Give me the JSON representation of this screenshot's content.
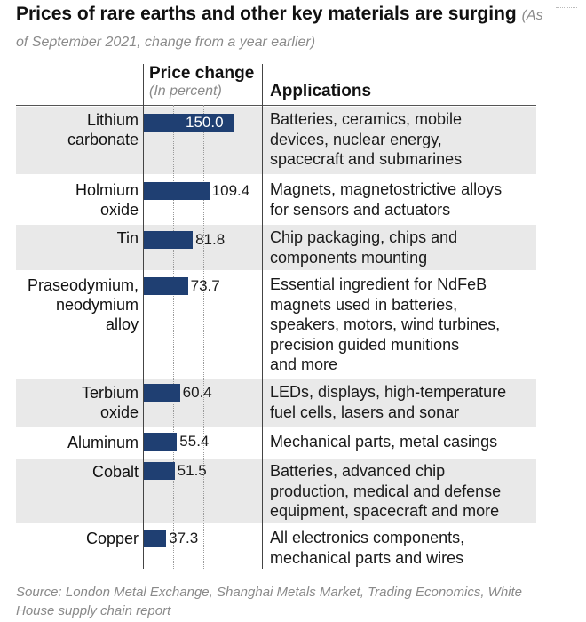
{
  "title": "Prices of rare earths and other key materials are surging",
  "subtitle": "(As of September 2021, change from a year earlier)",
  "headers": {
    "price_change": "Price change",
    "price_unit": "(In percent)",
    "applications": "Applications"
  },
  "source": "Source: London Metal Exchange, Shanghai Metals Market, Trading Economics, White House supply chain report",
  "chart_data": {
    "type": "bar",
    "orientation": "horizontal",
    "title": "Prices of rare earths and other key materials are surging",
    "subtitle": "(As of September 2021, change from a year earlier)",
    "xlabel": "Price change (In percent)",
    "ylabel": "",
    "xlim": [
      0,
      150
    ],
    "color": "#1f3f72",
    "categories": [
      "Lithium carbonate",
      "Holmium oxide",
      "Tin",
      "Praseodymium, neodymium alloy",
      "Terbium oxide",
      "Aluminum",
      "Cobalt",
      "Copper"
    ],
    "values": [
      150.0,
      109.4,
      81.8,
      73.7,
      60.4,
      55.4,
      51.5,
      37.3
    ],
    "rows": [
      {
        "material": [
          "Lithium",
          "carbonate"
        ],
        "value": 150.0,
        "value_label": "150.0",
        "label_inside": true,
        "applications": [
          "Batteries, ceramics, mobile",
          "devices, nuclear energy,",
          "spacecraft and submarines"
        ]
      },
      {
        "material": [
          "Holmium",
          "oxide"
        ],
        "value": 109.4,
        "value_label": "109.4",
        "label_inside": false,
        "applications": [
          "Magnets, magnetostrictive alloys",
          "for sensors and actuators"
        ]
      },
      {
        "material": [
          "Tin"
        ],
        "value": 81.8,
        "value_label": "81.8",
        "label_inside": false,
        "applications": [
          "Chip packaging, chips and",
          "components mounting"
        ]
      },
      {
        "material": [
          "Praseodymium,",
          "neodymium",
          "alloy"
        ],
        "value": 73.7,
        "value_label": "73.7",
        "label_inside": false,
        "applications": [
          "Essential ingredient for NdFeB",
          "magnets used in batteries,",
          "speakers, motors, wind turbines,",
          "precision guided munitions",
          "and more"
        ]
      },
      {
        "material": [
          "Terbium",
          "oxide"
        ],
        "value": 60.4,
        "value_label": "60.4",
        "label_inside": false,
        "applications": [
          "LEDs, displays, high-temperature",
          "fuel cells, lasers and sonar"
        ]
      },
      {
        "material": [
          "Aluminum"
        ],
        "value": 55.4,
        "value_label": "55.4",
        "label_inside": false,
        "applications": [
          "Mechanical parts, metal casings"
        ]
      },
      {
        "material": [
          "Cobalt"
        ],
        "value": 51.5,
        "value_label": "51.5",
        "label_inside": false,
        "applications": [
          "Batteries, advanced chip",
          "production, medical and defense",
          "equipment, spacecraft and more"
        ]
      },
      {
        "material": [
          "Copper"
        ],
        "value": 37.3,
        "value_label": "37.3",
        "label_inside": false,
        "applications": [
          "All electronics components,",
          "mechanical parts and wires"
        ]
      }
    ]
  }
}
